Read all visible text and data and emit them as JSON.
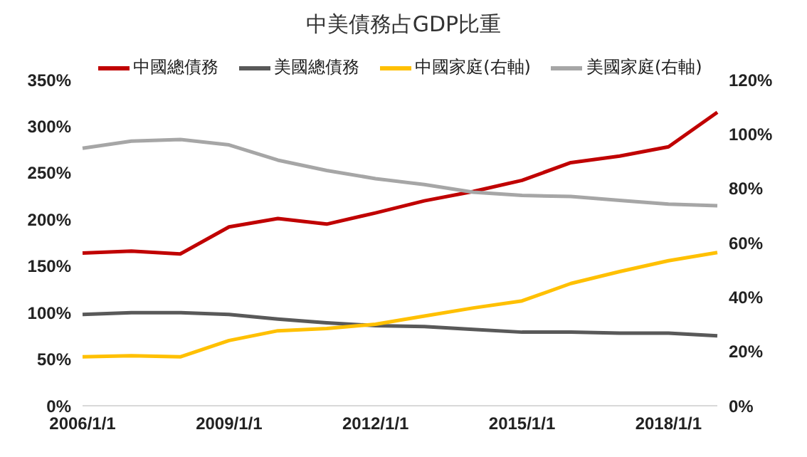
{
  "chart_data": {
    "type": "line",
    "title": "中美債務占GDP比重",
    "categories": [
      "2006/1/1",
      null,
      null,
      "2009/1/1",
      null,
      null,
      "2012/1/1",
      null,
      null,
      "2015/1/1",
      null,
      null,
      "2018/1/1",
      null
    ],
    "series": [
      {
        "name": "中國總債務",
        "color": "#c00000",
        "values": [
          164,
          166,
          163,
          192,
          201,
          195,
          207,
          220,
          230,
          242,
          261,
          268,
          278,
          315
        ]
      },
      {
        "name": "美國總債務",
        "color": "#595959",
        "values": [
          98,
          100,
          100,
          98,
          93,
          89,
          86,
          85,
          82,
          79,
          79,
          78,
          78,
          75
        ]
      },
      {
        "name": "中國家庭(右軸)",
        "color": "#ffc000",
        "axis": "y2",
        "values": [
          18,
          18.4,
          18,
          24,
          27.6,
          28.4,
          30,
          33,
          36,
          38.6,
          45,
          49.4,
          53.4,
          56.4
        ]
      },
      {
        "name": "美國家庭(右軸)",
        "color": "#a6a6a6",
        "axis": "y2",
        "values": [
          94.8,
          97.4,
          98,
          96,
          90.4,
          86.6,
          83.6,
          81.4,
          78.6,
          77.4,
          77,
          75.6,
          74.2,
          73.6
        ]
      }
    ],
    "ylim": [
      0,
      350
    ],
    "yticks": [
      {
        "value": 0,
        "label": "0%"
      },
      {
        "value": 50,
        "label": "50%"
      },
      {
        "value": 100,
        "label": "100%"
      },
      {
        "value": 150,
        "label": "150%"
      },
      {
        "value": 200,
        "label": "200%"
      },
      {
        "value": 250,
        "label": "250%"
      },
      {
        "value": 300,
        "label": "300%"
      },
      {
        "value": 350,
        "label": "350%"
      }
    ],
    "y2lim": [
      0,
      120
    ],
    "y2ticks": [
      {
        "value": 0,
        "label": "0%"
      },
      {
        "value": 20,
        "label": "20%"
      },
      {
        "value": 40,
        "label": "40%"
      },
      {
        "value": 60,
        "label": "60%"
      },
      {
        "value": 80,
        "label": "80%"
      },
      {
        "value": 100,
        "label": "100%"
      },
      {
        "value": 120,
        "label": "120%"
      }
    ],
    "legend": "top",
    "grid": false,
    "marker": "none",
    "line_style": "solid"
  }
}
